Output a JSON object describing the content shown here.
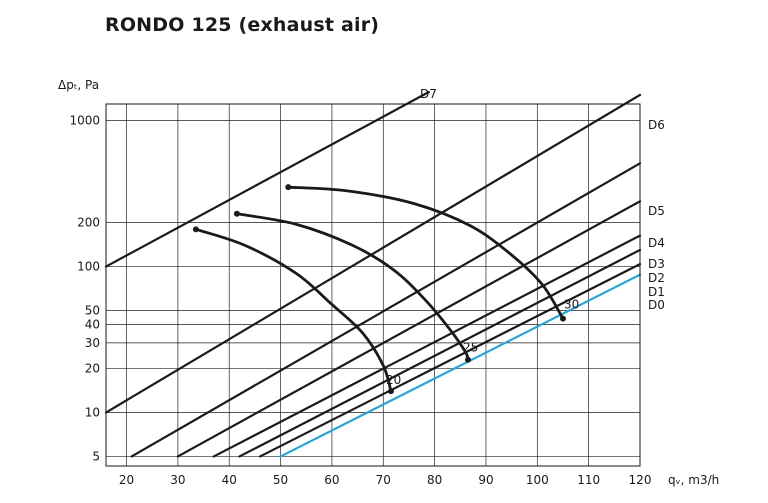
{
  "chart_data": {
    "type": "line",
    "title": "RONDO 125 (exhaust air)",
    "ylabel": "Δpₜ, Pa",
    "xlabel": "qᵥ, m3/h",
    "y_ticks": [
      5,
      10,
      20,
      30,
      40,
      50,
      100,
      200,
      1000
    ],
    "x_ticks": [
      20,
      30,
      40,
      50,
      60,
      70,
      80,
      90,
      100,
      110,
      120
    ],
    "series": [
      {
        "name": "D0",
        "color": "#29a3d6",
        "points": [
          [
            50,
            5
          ],
          [
            120,
            88
          ]
        ]
      },
      {
        "name": "D1",
        "color": "#1a1a1a",
        "points": [
          [
            46,
            5
          ],
          [
            120,
            104
          ]
        ]
      },
      {
        "name": "D2",
        "color": "#1a1a1a",
        "points": [
          [
            42,
            5
          ],
          [
            120,
            130
          ]
        ]
      },
      {
        "name": "D3",
        "color": "#1a1a1a",
        "points": [
          [
            37,
            5
          ],
          [
            120,
            163
          ]
        ]
      },
      {
        "name": "D4",
        "color": "#1a1a1a",
        "points": [
          [
            30,
            5
          ],
          [
            120,
            280
          ]
        ]
      },
      {
        "name": "D5",
        "color": "#1a1a1a",
        "points": [
          [
            21,
            5
          ],
          [
            120,
            510
          ]
        ]
      },
      {
        "name": "D6",
        "color": "#1a1a1a",
        "points": [
          [
            16,
            10
          ],
          [
            120,
            1500
          ]
        ]
      },
      {
        "name": "D7",
        "color": "#1a1a1a",
        "points": [
          [
            16,
            100
          ],
          [
            80,
            1650
          ]
        ]
      }
    ],
    "sound_curves": [
      {
        "label": "20",
        "points": [
          [
            33.5,
            180
          ],
          [
            43,
            140
          ],
          [
            53,
            90
          ],
          [
            60,
            55
          ],
          [
            66,
            35
          ],
          [
            70,
            21
          ],
          [
            71.5,
            14
          ]
        ]
      },
      {
        "label": "25",
        "points": [
          [
            41.5,
            230
          ],
          [
            53,
            195
          ],
          [
            64,
            140
          ],
          [
            72,
            95
          ],
          [
            78,
            60
          ],
          [
            83,
            37
          ],
          [
            86,
            26
          ],
          [
            86.5,
            23
          ]
        ]
      },
      {
        "label": "30",
        "points": [
          [
            51.5,
            350
          ],
          [
            63,
            330
          ],
          [
            76,
            270
          ],
          [
            87,
            190
          ],
          [
            95,
            120
          ],
          [
            101,
            75
          ],
          [
            105,
            44
          ]
        ]
      }
    ],
    "ylim": [
      4.3,
      1300
    ],
    "xlim": [
      16,
      120
    ]
  }
}
